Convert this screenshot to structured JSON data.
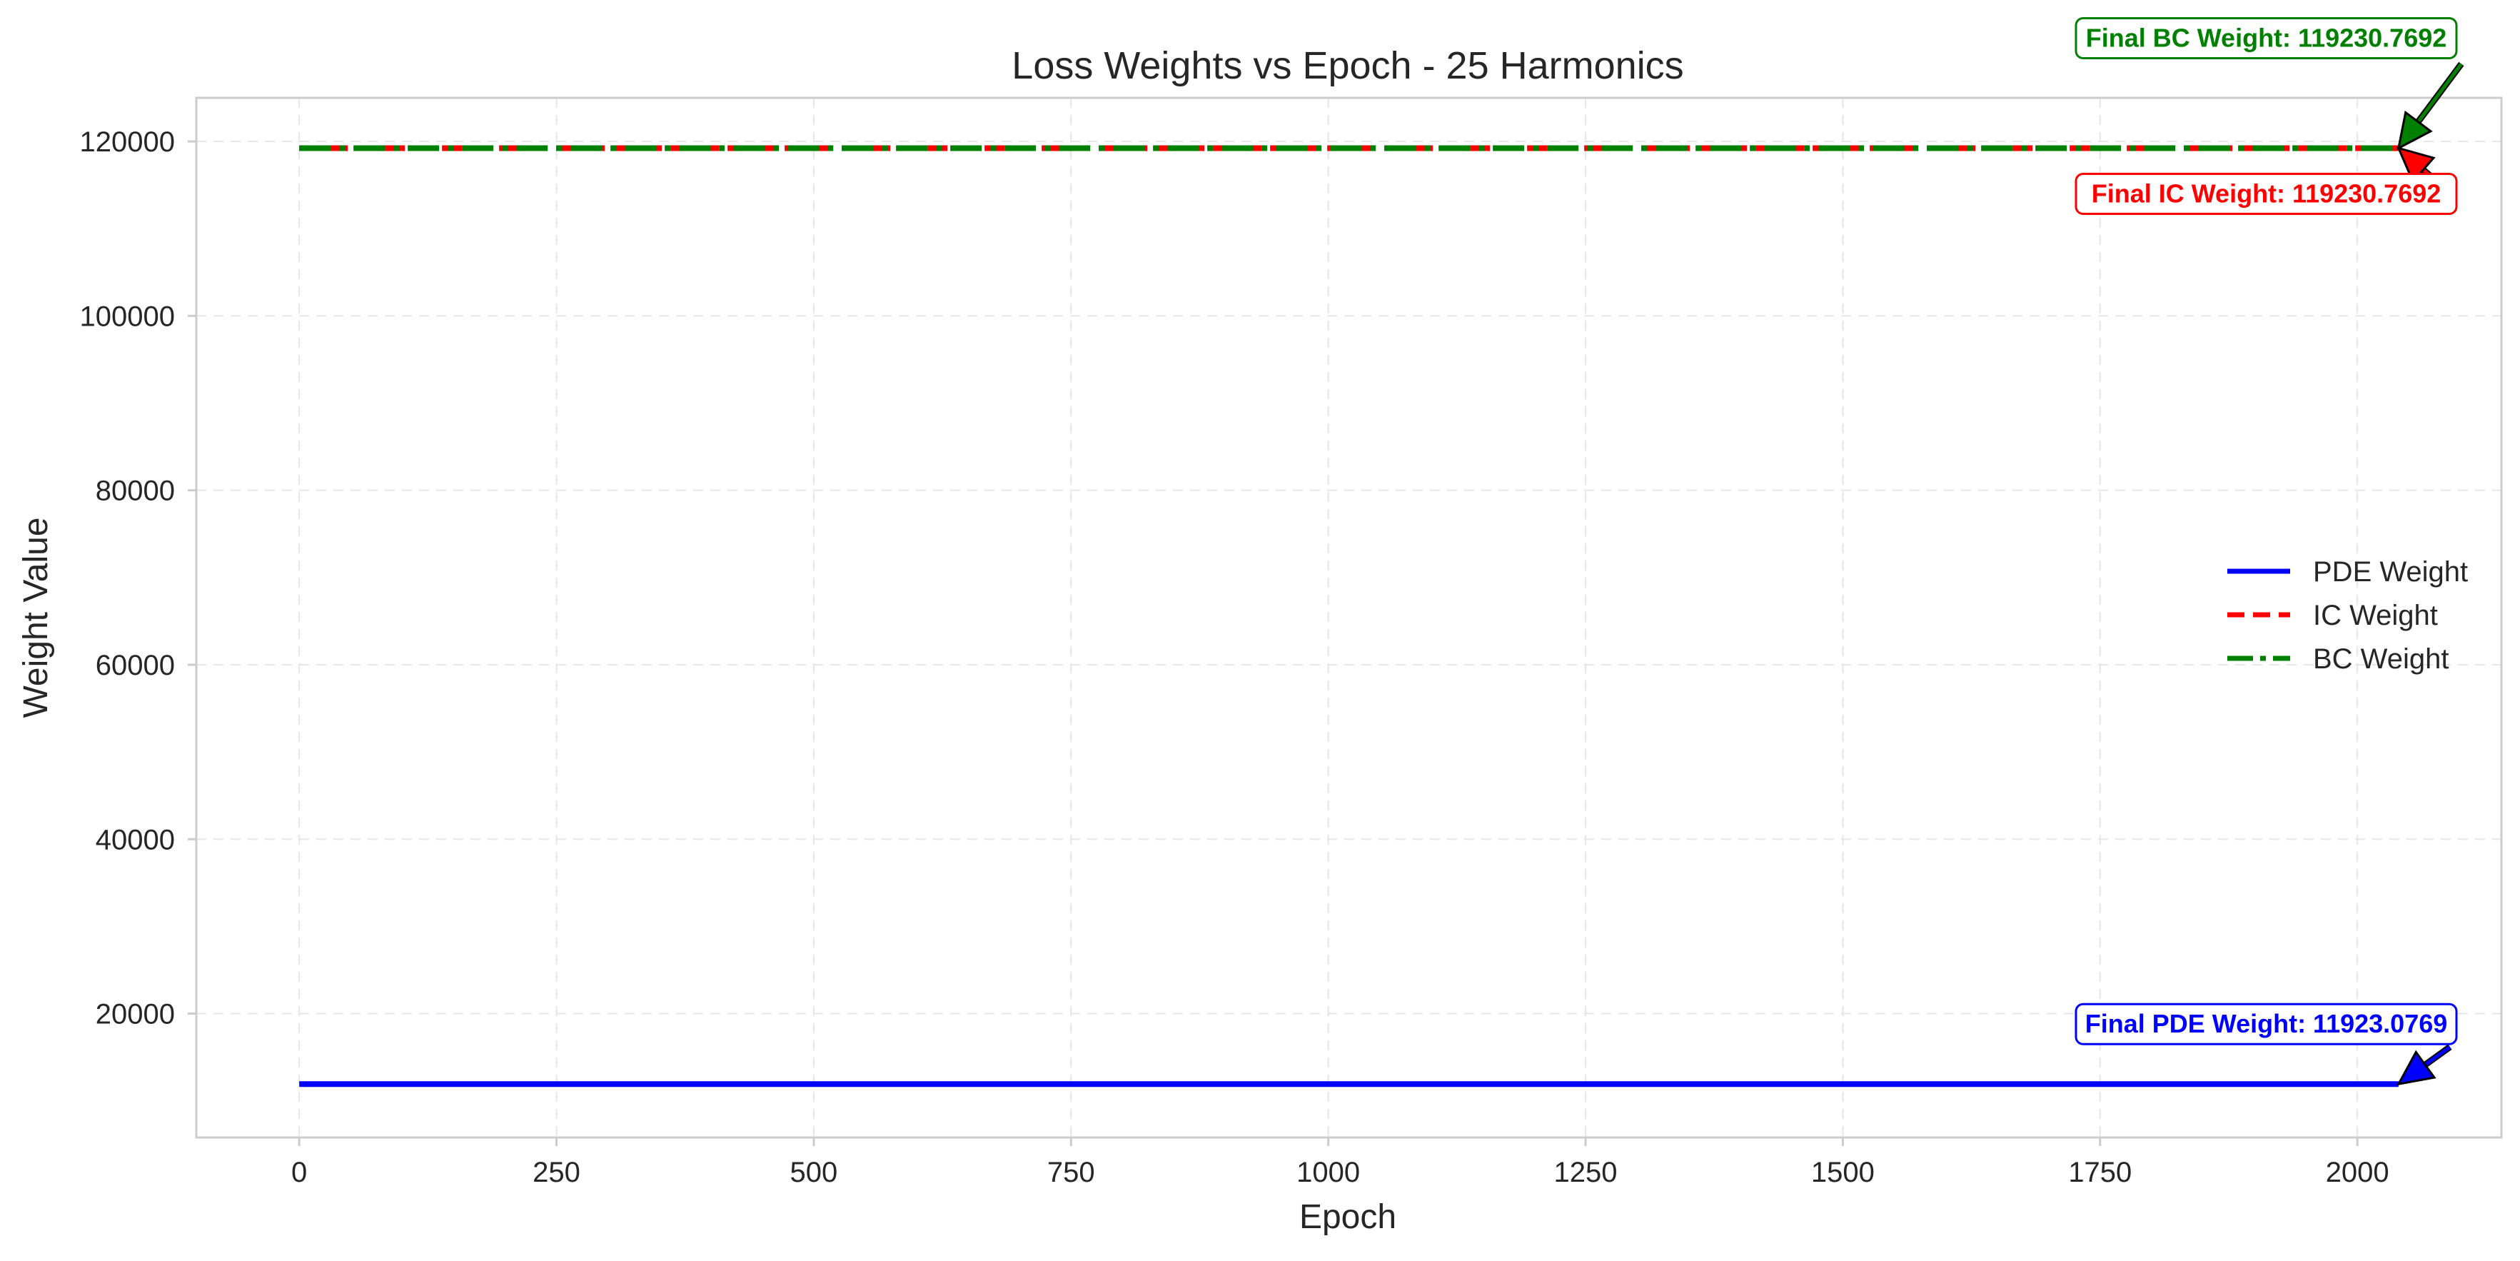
{
  "chart_data": {
    "type": "line",
    "title": "Loss Weights vs Epoch - 25 Harmonics",
    "xlabel": "Epoch",
    "ylabel": "Weight Value",
    "xlim": [
      -100,
      2140
    ],
    "ylim": [
      5800,
      125000
    ],
    "xticks": [
      0,
      250,
      500,
      750,
      1000,
      1250,
      1500,
      1750,
      2000
    ],
    "yticks": [
      20000,
      40000,
      60000,
      80000,
      100000,
      120000
    ],
    "grid": true,
    "legend_position": "center-right",
    "series": [
      {
        "name": "PDE Weight",
        "color": "#0000ff",
        "style": "solid",
        "x": [
          0,
          2040
        ],
        "y": [
          11923.0769,
          11923.0769
        ]
      },
      {
        "name": "IC Weight",
        "color": "#ff0000",
        "style": "dashed",
        "x": [
          0,
          2040
        ],
        "y": [
          119230.7692,
          119230.7692
        ]
      },
      {
        "name": "BC Weight",
        "color": "#008000",
        "style": "dashdot",
        "x": [
          0,
          2040
        ],
        "y": [
          119230.7692,
          119230.7692
        ]
      }
    ],
    "annotations": [
      {
        "text": "Final BC Weight: 119230.7692",
        "color": "#008000",
        "point": [
          2040,
          119230.7692
        ],
        "text_position": "above-right"
      },
      {
        "text": "Final IC Weight: 119230.7692",
        "color": "#ff0000",
        "point": [
          2040,
          119230.7692
        ],
        "text_position": "below-right"
      },
      {
        "text": "Final PDE Weight: 11923.0769",
        "color": "#0000ff",
        "point": [
          2040,
          11923.0769
        ],
        "text_position": "above-right"
      }
    ]
  }
}
